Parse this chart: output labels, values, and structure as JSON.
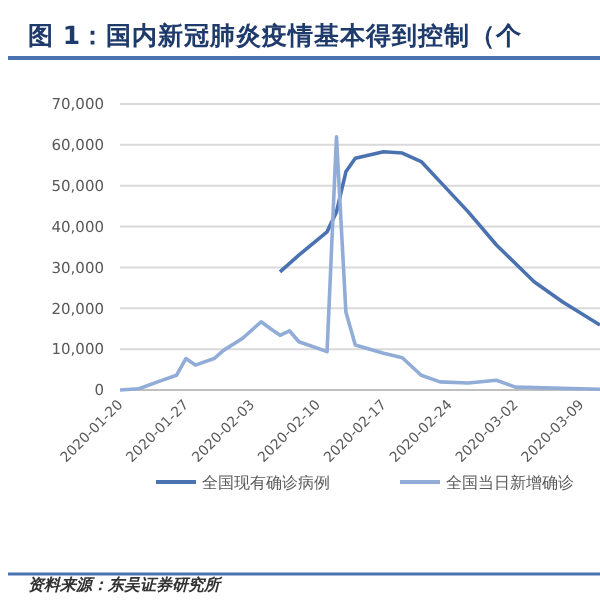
{
  "chart_data": {
    "type": "line",
    "title": "图 1：国内新冠肺炎疫情基本得到控制（个",
    "x": [
      "2020-01-20",
      "2020-01-22",
      "2020-01-24",
      "2020-01-26",
      "2020-01-27",
      "2020-01-28",
      "2020-01-30",
      "2020-01-31",
      "2020-02-02",
      "2020-02-04",
      "2020-02-05",
      "2020-02-06",
      "2020-02-07",
      "2020-02-08",
      "2020-02-09",
      "2020-02-10",
      "2020-02-11",
      "2020-02-12",
      "2020-02-13",
      "2020-02-14",
      "2020-02-15",
      "2020-02-17",
      "2020-02-19",
      "2020-02-21",
      "2020-02-23",
      "2020-02-26",
      "2020-02-29",
      "2020-03-02",
      "2020-03-04",
      "2020-03-07",
      "2020-03-11"
    ],
    "series": [
      {
        "name": "全国现有确诊病例",
        "color": "#4a72b0",
        "values": [
          null,
          null,
          null,
          null,
          null,
          null,
          null,
          null,
          null,
          null,
          null,
          28900,
          null,
          33000,
          null,
          null,
          38700,
          43600,
          53400,
          56700,
          null,
          58300,
          58000,
          55900,
          51000,
          43600,
          35500,
          null,
          26500,
          21600,
          15900
        ]
      },
      {
        "name": "全国当日新增确诊",
        "color": "#92acd8",
        "values": [
          0,
          300,
          2000,
          3600,
          7700,
          6100,
          7700,
          9700,
          12600,
          16700,
          15000,
          13400,
          14500,
          11800,
          11000,
          null,
          9400,
          62000,
          19100,
          11000,
          null,
          9000,
          7900,
          3600,
          2000,
          1700,
          2400,
          700,
          null,
          null,
          200
        ]
      }
    ],
    "ylim": [
      0,
      70000
    ],
    "yticks": [
      {
        "value": 0,
        "label": "0"
      },
      {
        "value": 10000,
        "label": "10,000"
      },
      {
        "value": 20000,
        "label": "20,000"
      },
      {
        "value": 30000,
        "label": "30,000"
      },
      {
        "value": 40000,
        "label": "40,000"
      },
      {
        "value": 50000,
        "label": "50,000"
      },
      {
        "value": 60000,
        "label": "60,000"
      },
      {
        "value": 70000,
        "label": "70,000"
      }
    ],
    "xlim": [
      "2020-01-20",
      "2020-03-11"
    ],
    "xticks": [
      {
        "value": "2020-01-20",
        "label": "2020-01-20"
      },
      {
        "value": "2020-01-27",
        "label": "2020-01-27"
      },
      {
        "value": "2020-02-03",
        "label": "2020-02-03"
      },
      {
        "value": "2020-02-10",
        "label": "2020-02-10"
      },
      {
        "value": "2020-02-17",
        "label": "2020-02-17"
      },
      {
        "value": "2020-02-24",
        "label": "2020-02-24"
      },
      {
        "value": "2020-03-02",
        "label": "2020-03-02"
      },
      {
        "value": "2020-03-09",
        "label": "2020-03-09"
      }
    ],
    "grid": "y",
    "legend": "bottom",
    "marker": "none",
    "line_style": "solid",
    "annotations": [
      "资料来源：东吴证券研究所"
    ]
  }
}
